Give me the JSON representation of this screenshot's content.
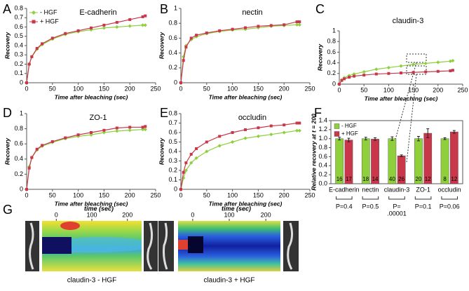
{
  "chart_data": [
    {
      "type": "line",
      "panel": "A",
      "title": "E-cadherin",
      "xlabel": "Time after bleaching (sec)",
      "ylabel": "Recovery",
      "x": [
        0,
        5,
        10,
        20,
        30,
        50,
        75,
        100,
        125,
        150,
        175,
        200,
        225,
        230
      ],
      "xlim": [
        0,
        250
      ],
      "xticks": [
        0,
        50,
        100,
        150,
        200,
        250
      ],
      "ylim": [
        0,
        0.8
      ],
      "yticks": [
        0,
        0.1,
        0.2,
        0.3,
        0.4,
        0.5,
        0.6,
        0.7,
        0.8
      ],
      "legend": "upper left",
      "series": [
        {
          "name": "- HGF",
          "color": "#8fcf3c",
          "values": [
            0,
            0.2,
            0.28,
            0.36,
            0.41,
            0.47,
            0.52,
            0.55,
            0.57,
            0.59,
            0.6,
            0.61,
            0.62,
            0.62
          ]
        },
        {
          "name": "+ HGF",
          "color": "#c8374a",
          "values": [
            0,
            0.2,
            0.28,
            0.37,
            0.42,
            0.48,
            0.53,
            0.56,
            0.59,
            0.62,
            0.65,
            0.68,
            0.71,
            0.72
          ]
        }
      ]
    },
    {
      "type": "line",
      "panel": "B",
      "title": "nectin",
      "xlabel": "Time after bleaching (sec)",
      "ylabel": "Recovery",
      "x": [
        0,
        5,
        10,
        20,
        30,
        50,
        75,
        100,
        125,
        150,
        175,
        200,
        225,
        230
      ],
      "xlim": [
        0,
        250
      ],
      "xticks": [
        0,
        50,
        100,
        150,
        200,
        250
      ],
      "ylim": [
        0,
        1
      ],
      "yticks": [
        0,
        0.2,
        0.4,
        0.6,
        0.8,
        1
      ],
      "series": [
        {
          "color": "#8fcf3c",
          "values": [
            0,
            0.35,
            0.5,
            0.58,
            0.62,
            0.66,
            0.69,
            0.71,
            0.72,
            0.74,
            0.76,
            0.77,
            0.78,
            0.78
          ]
        },
        {
          "color": "#c8374a",
          "values": [
            0,
            0.3,
            0.48,
            0.6,
            0.64,
            0.67,
            0.7,
            0.72,
            0.74,
            0.76,
            0.77,
            0.78,
            0.82,
            0.82
          ]
        }
      ]
    },
    {
      "type": "line",
      "panel": "C",
      "title": "claudin-3",
      "xlabel": "Time after bleaching (sec)",
      "ylabel": "Recovery",
      "x": [
        0,
        5,
        10,
        20,
        30,
        50,
        75,
        100,
        125,
        150,
        175,
        200,
        225,
        230
      ],
      "xlim": [
        0,
        250
      ],
      "xticks": [
        0,
        50,
        100,
        150,
        200,
        250
      ],
      "ylim": [
        0,
        1
      ],
      "yticks": [
        0,
        0.2,
        0.4,
        0.6,
        0.8,
        1
      ],
      "series": [
        {
          "color": "#8fcf3c",
          "values": [
            0,
            0.08,
            0.12,
            0.16,
            0.19,
            0.23,
            0.28,
            0.31,
            0.34,
            0.37,
            0.39,
            0.41,
            0.43,
            0.44
          ]
        },
        {
          "color": "#c8374a",
          "values": [
            0,
            0.07,
            0.1,
            0.13,
            0.15,
            0.17,
            0.19,
            0.2,
            0.21,
            0.22,
            0.23,
            0.24,
            0.25,
            0.26
          ]
        }
      ]
    },
    {
      "type": "line",
      "panel": "D",
      "title": "ZO-1",
      "xlabel": "Time after bleaching (sec)",
      "ylabel": "Recovery",
      "x": [
        0,
        5,
        10,
        20,
        30,
        50,
        75,
        100,
        125,
        150,
        175,
        200,
        225,
        230
      ],
      "xlim": [
        0,
        250
      ],
      "xticks": [
        0,
        50,
        100,
        150,
        200,
        250
      ],
      "ylim": [
        0,
        1
      ],
      "yticks": [
        0,
        0.2,
        0.4,
        0.6,
        0.8,
        1
      ],
      "series": [
        {
          "color": "#8fcf3c",
          "values": [
            0,
            0.3,
            0.42,
            0.52,
            0.57,
            0.62,
            0.67,
            0.7,
            0.72,
            0.75,
            0.77,
            0.78,
            0.79,
            0.79
          ]
        },
        {
          "color": "#c8374a",
          "values": [
            0,
            0.28,
            0.42,
            0.53,
            0.58,
            0.63,
            0.68,
            0.72,
            0.75,
            0.78,
            0.81,
            0.82,
            0.82,
            0.83
          ]
        }
      ]
    },
    {
      "type": "line",
      "panel": "E",
      "title": "occludin",
      "xlabel": "Time after bleaching (sec)",
      "ylabel": "Recovery",
      "x": [
        0,
        5,
        10,
        20,
        30,
        50,
        75,
        100,
        125,
        150,
        175,
        200,
        225,
        230
      ],
      "xlim": [
        0,
        250
      ],
      "xticks": [
        0,
        50,
        100,
        150,
        200,
        250
      ],
      "ylim": [
        0,
        0.8
      ],
      "yticks": [
        0,
        0.1,
        0.2,
        0.3,
        0.4,
        0.5,
        0.6,
        0.7,
        0.8
      ],
      "series": [
        {
          "color": "#8fcf3c",
          "values": [
            0,
            0.12,
            0.2,
            0.28,
            0.33,
            0.4,
            0.46,
            0.5,
            0.54,
            0.56,
            0.58,
            0.6,
            0.62,
            0.62
          ]
        },
        {
          "color": "#c8374a",
          "values": [
            0,
            0.18,
            0.28,
            0.37,
            0.43,
            0.5,
            0.56,
            0.6,
            0.63,
            0.65,
            0.67,
            0.68,
            0.7,
            0.7
          ]
        }
      ]
    },
    {
      "type": "bar",
      "panel": "F",
      "ylabel": "Relative recovery at t = 200",
      "categories": [
        "E-cadherin",
        "nectin",
        "claudin-3",
        "ZO-1",
        "occludin"
      ],
      "ylim": [
        0,
        1.4
      ],
      "yticks": [
        {
          "value": 0,
          "label": "0.0"
        },
        0.2,
        0.4,
        0.6,
        0.8,
        {
          "value": 1,
          "label": "1.0"
        },
        1.2,
        1.4
      ],
      "legend": "upper left",
      "series": [
        {
          "name": "- HGF",
          "color": "#8fcf3c",
          "values": [
            1,
            1,
            1,
            1,
            1
          ],
          "errors": [
            0.03,
            0.03,
            0.04,
            0.05,
            0.02
          ],
          "n": [
            16,
            18,
            40,
            20,
            8
          ]
        },
        {
          "name": "+ HGF",
          "color": "#c8374a",
          "values": [
            0.97,
            0.99,
            0.62,
            1.12,
            1.15
          ],
          "errors": [
            0.04,
            0.03,
            0.02,
            0.1,
            0.03
          ],
          "n": [
            17,
            14,
            26,
            12,
            12
          ]
        }
      ],
      "p_values": [
        [
          "P=0.4"
        ],
        [
          "P=0.5"
        ],
        [
          "P=",
          ".00001"
        ],
        [
          "P=0.1"
        ],
        [
          "P=0.06"
        ]
      ]
    }
  ],
  "panel_g": {
    "panel": "G",
    "images": [
      {
        "xlabel": "time (sec)",
        "xlim": [
          -40,
          240
        ],
        "xticks": [
          0,
          100,
          200
        ],
        "caption": "claudin-3 - HGF"
      },
      {
        "xlabel": "time (sec)",
        "xlim": [
          -40,
          240
        ],
        "xticks": [
          0,
          100,
          200
        ],
        "caption": "claudin-3 + HGF"
      }
    ]
  }
}
